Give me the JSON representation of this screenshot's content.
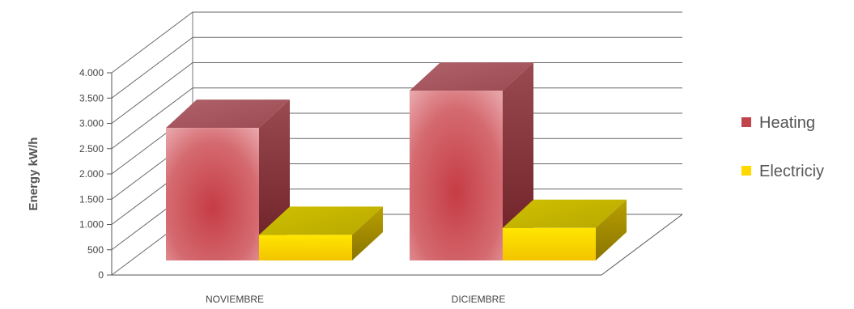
{
  "chart_data": {
    "type": "bar",
    "categories": [
      "NOVIEMBRE",
      "DICIEMBRE"
    ],
    "series": [
      {
        "name": "Heating",
        "values": [
          2850,
          3650
        ],
        "color": "#c0444c"
      },
      {
        "name": "Electriciy",
        "values": [
          550,
          700
        ],
        "color": "#ffd800"
      }
    ],
    "ylabel": "Energy kW/h",
    "ylim": [
      0,
      4000
    ],
    "yticks": [
      0,
      500,
      1000,
      1500,
      2000,
      2500,
      3000,
      3500,
      4000
    ],
    "ytick_labels": [
      "0",
      "500",
      "1.000",
      "1.500",
      "2.000",
      "2.500",
      "3.000",
      "3.500",
      "4.000"
    ],
    "grid": true,
    "three_d": true,
    "legend_position": "right"
  }
}
